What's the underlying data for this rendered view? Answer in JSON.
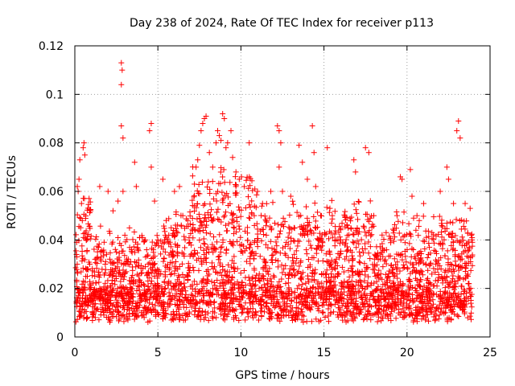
{
  "chart_data": {
    "type": "scatter",
    "title": "Day 238 of 2024, Rate Of TEC Index for receiver p113",
    "xlabel": "GPS time / hours",
    "ylabel": "ROTI / TECUs",
    "xlim": [
      0,
      25
    ],
    "ylim": [
      0,
      0.12
    ],
    "xticks": [
      0,
      5,
      10,
      15,
      20,
      25
    ],
    "xtick_labels": [
      "0",
      "5",
      "10",
      "15",
      "20",
      "25"
    ],
    "yticks": [
      0,
      0.02,
      0.04,
      0.06,
      0.08,
      0.1,
      0.12
    ],
    "ytick_labels": [
      "0",
      "0.02",
      "0.04",
      "0.06",
      "0.08",
      "0.1",
      "0.12"
    ],
    "grid": true,
    "marker": "+",
    "color": "#ff0000",
    "series": [
      {
        "name": "ROTI",
        "points": [
          [
            0.1,
            0.034
          ],
          [
            0.15,
            0.062
          ],
          [
            0.2,
            0.06
          ],
          [
            0.25,
            0.065
          ],
          [
            0.3,
            0.073
          ],
          [
            0.35,
            0.045
          ],
          [
            0.4,
            0.055
          ],
          [
            0.45,
            0.048
          ],
          [
            0.5,
            0.078
          ],
          [
            0.55,
            0.08
          ],
          [
            0.6,
            0.075
          ],
          [
            0.7,
            0.04
          ],
          [
            0.9,
            0.03
          ],
          [
            1.2,
            0.025
          ],
          [
            1.5,
            0.02
          ],
          [
            1.5,
            0.062
          ],
          [
            2.0,
            0.06
          ],
          [
            2.3,
            0.052
          ],
          [
            2.5,
            0.035
          ],
          [
            2.6,
            0.056
          ],
          [
            2.8,
            0.113
          ],
          [
            2.85,
            0.11
          ],
          [
            2.8,
            0.104
          ],
          [
            2.8,
            0.087
          ],
          [
            2.9,
            0.082
          ],
          [
            2.9,
            0.06
          ],
          [
            3.2,
            0.03
          ],
          [
            3.6,
            0.072
          ],
          [
            3.7,
            0.062
          ],
          [
            3.9,
            0.041
          ],
          [
            4.5,
            0.085
          ],
          [
            4.6,
            0.088
          ],
          [
            4.6,
            0.07
          ],
          [
            4.8,
            0.056
          ],
          [
            5.0,
            0.04
          ],
          [
            5.3,
            0.065
          ],
          [
            5.5,
            0.048
          ],
          [
            5.8,
            0.045
          ],
          [
            6.0,
            0.06
          ],
          [
            6.3,
            0.062
          ],
          [
            6.5,
            0.05
          ],
          [
            6.8,
            0.048
          ],
          [
            7.2,
            0.063
          ],
          [
            7.3,
            0.07
          ],
          [
            7.4,
            0.073
          ],
          [
            7.5,
            0.079
          ],
          [
            7.6,
            0.085
          ],
          [
            7.7,
            0.088
          ],
          [
            7.8,
            0.09
          ],
          [
            7.9,
            0.091
          ],
          [
            8.1,
            0.076
          ],
          [
            8.3,
            0.07
          ],
          [
            8.5,
            0.08
          ],
          [
            8.6,
            0.085
          ],
          [
            8.7,
            0.083
          ],
          [
            8.8,
            0.081
          ],
          [
            8.9,
            0.092
          ],
          [
            9.0,
            0.09
          ],
          [
            9.1,
            0.078
          ],
          [
            9.2,
            0.08
          ],
          [
            9.4,
            0.085
          ],
          [
            9.5,
            0.074
          ],
          [
            9.7,
            0.068
          ],
          [
            9.9,
            0.065
          ],
          [
            10.2,
            0.062
          ],
          [
            10.5,
            0.08
          ],
          [
            10.8,
            0.05
          ],
          [
            11.0,
            0.06
          ],
          [
            11.3,
            0.055
          ],
          [
            11.8,
            0.06
          ],
          [
            12.2,
            0.087
          ],
          [
            12.3,
            0.085
          ],
          [
            12.4,
            0.08
          ],
          [
            12.3,
            0.07
          ],
          [
            12.5,
            0.06
          ],
          [
            13.0,
            0.058
          ],
          [
            13.2,
            0.045
          ],
          [
            13.5,
            0.079
          ],
          [
            13.7,
            0.072
          ],
          [
            14.0,
            0.065
          ],
          [
            14.3,
            0.087
          ],
          [
            14.4,
            0.076
          ],
          [
            14.5,
            0.062
          ],
          [
            14.8,
            0.05
          ],
          [
            15.2,
            0.078
          ],
          [
            15.5,
            0.05
          ],
          [
            16.0,
            0.04
          ],
          [
            16.4,
            0.046
          ],
          [
            16.8,
            0.073
          ],
          [
            16.9,
            0.068
          ],
          [
            17.5,
            0.078
          ],
          [
            17.7,
            0.076
          ],
          [
            18.0,
            0.05
          ],
          [
            18.5,
            0.042
          ],
          [
            19.0,
            0.04
          ],
          [
            19.4,
            0.05
          ],
          [
            19.6,
            0.066
          ],
          [
            19.7,
            0.065
          ],
          [
            20.2,
            0.069
          ],
          [
            20.3,
            0.058
          ],
          [
            20.6,
            0.05
          ],
          [
            21.0,
            0.055
          ],
          [
            21.5,
            0.043
          ],
          [
            22.0,
            0.06
          ],
          [
            22.4,
            0.07
          ],
          [
            22.5,
            0.065
          ],
          [
            22.8,
            0.055
          ],
          [
            23.0,
            0.085
          ],
          [
            23.1,
            0.089
          ],
          [
            23.2,
            0.082
          ],
          [
            23.5,
            0.055
          ],
          [
            23.8,
            0.053
          ],
          [
            23.9,
            0.04
          ]
        ]
      }
    ]
  }
}
